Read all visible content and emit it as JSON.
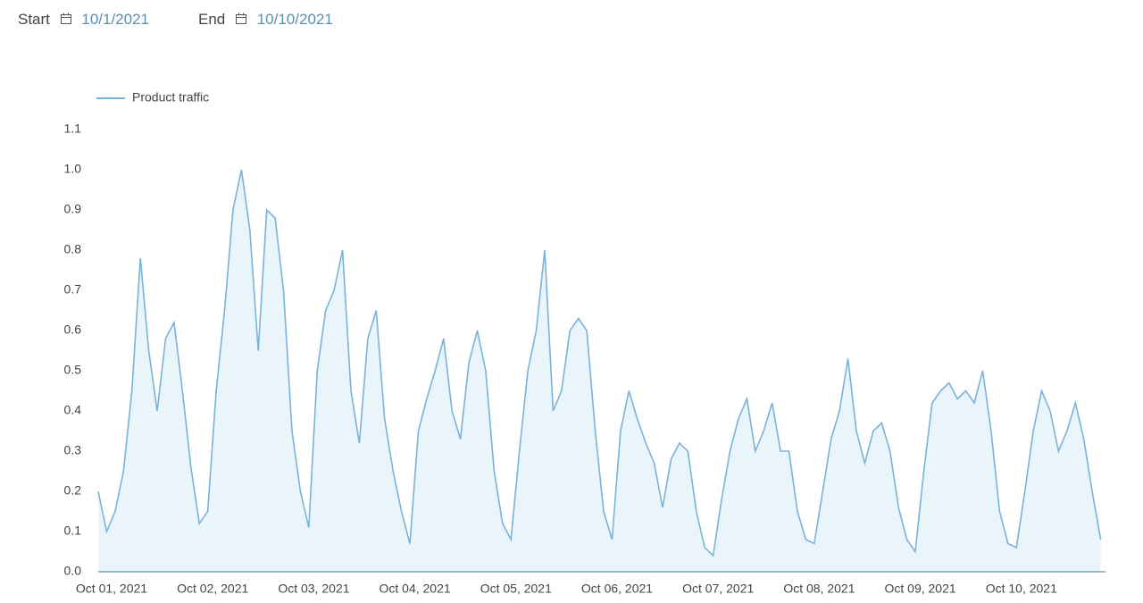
{
  "header": {
    "start_label": "Start",
    "start_date": "10/1/2021",
    "end_label": "End",
    "end_date": "10/10/2021"
  },
  "chart_data": {
    "type": "area",
    "categories": [
      "Oct 01, 2021",
      null,
      null,
      null,
      null,
      null,
      null,
      null,
      null,
      null,
      null,
      null,
      "Oct 02, 2021",
      null,
      null,
      null,
      null,
      null,
      null,
      null,
      null,
      null,
      null,
      null,
      "Oct 03, 2021",
      null,
      null,
      null,
      null,
      null,
      null,
      null,
      null,
      null,
      null,
      null,
      "Oct 04, 2021",
      null,
      null,
      null,
      null,
      null,
      null,
      null,
      null,
      null,
      null,
      null,
      "Oct 05, 2021",
      null,
      null,
      null,
      null,
      null,
      null,
      null,
      null,
      null,
      null,
      null,
      "Oct 06, 2021",
      null,
      null,
      null,
      null,
      null,
      null,
      null,
      null,
      null,
      null,
      null,
      "Oct 07, 2021",
      null,
      null,
      null,
      null,
      null,
      null,
      null,
      null,
      null,
      null,
      null,
      "Oct 08, 2021",
      null,
      null,
      null,
      null,
      null,
      null,
      null,
      null,
      null,
      null,
      null,
      "Oct 09, 2021",
      null,
      null,
      null,
      null,
      null,
      null,
      null,
      null,
      null,
      null,
      null,
      "Oct 10, 2021",
      null,
      null,
      null,
      null,
      null,
      null,
      null,
      null,
      null,
      null,
      null
    ],
    "series": [
      {
        "name": "Product traffic",
        "color": "#7ab3d9",
        "fill": "#eaf4fb",
        "values": [
          0.2,
          0.1,
          0.15,
          0.25,
          0.45,
          0.78,
          0.55,
          0.4,
          0.58,
          0.62,
          0.45,
          0.26,
          0.12,
          0.15,
          0.45,
          0.65,
          0.9,
          1.0,
          0.85,
          0.55,
          0.9,
          0.88,
          0.7,
          0.35,
          0.2,
          0.11,
          0.5,
          0.65,
          0.7,
          0.8,
          0.45,
          0.32,
          0.58,
          0.65,
          0.38,
          0.25,
          0.15,
          0.07,
          0.35,
          0.43,
          0.5,
          0.58,
          0.4,
          0.33,
          0.52,
          0.6,
          0.5,
          0.25,
          0.12,
          0.08,
          0.3,
          0.5,
          0.6,
          0.8,
          0.4,
          0.45,
          0.6,
          0.63,
          0.6,
          0.35,
          0.15,
          0.08,
          0.35,
          0.45,
          0.38,
          0.32,
          0.27,
          0.16,
          0.28,
          0.32,
          0.3,
          0.15,
          0.06,
          0.04,
          0.18,
          0.3,
          0.38,
          0.43,
          0.3,
          0.35,
          0.42,
          0.3,
          0.3,
          0.15,
          0.08,
          0.07,
          0.2,
          0.33,
          0.4,
          0.53,
          0.35,
          0.27,
          0.35,
          0.37,
          0.3,
          0.16,
          0.08,
          0.05,
          0.25,
          0.42,
          0.45,
          0.47,
          0.43,
          0.45,
          0.42,
          0.5,
          0.35,
          0.15,
          0.07,
          0.06,
          0.2,
          0.35,
          0.45,
          0.4,
          0.3,
          0.35,
          0.42,
          0.33,
          0.2,
          0.08
        ]
      }
    ],
    "ylim": [
      0,
      1.1
    ],
    "yticks": [
      {
        "value": 0,
        "label": "0.0"
      },
      0.1,
      0.2,
      0.3,
      0.4,
      0.5,
      0.6,
      0.7,
      0.8,
      0.9,
      {
        "value": 1,
        "label": "1.0"
      },
      1.1
    ],
    "grid": false,
    "legend": "top-left"
  }
}
